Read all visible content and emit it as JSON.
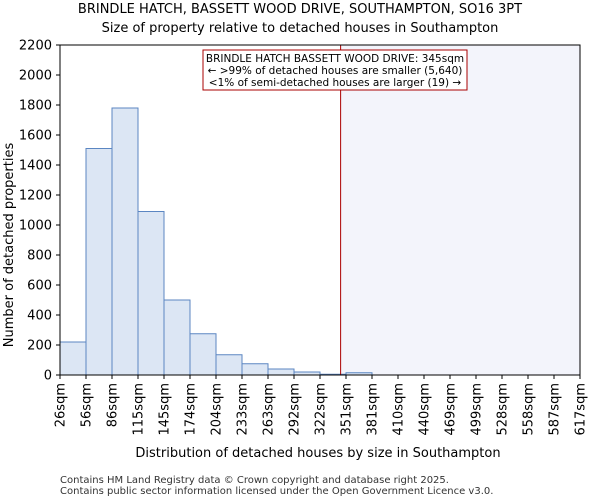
{
  "chart_data": {
    "type": "bar",
    "title": "BRINDLE HATCH, BASSETT WOOD DRIVE, SOUTHAMPTON, SO16 3PT",
    "subtitle": "Size of property relative to detached houses in Southampton",
    "xlabel": "Distribution of detached houses by size in Southampton",
    "ylabel": "Number of detached properties",
    "ylim": [
      0,
      2200
    ],
    "yticks": [
      0,
      200,
      400,
      600,
      800,
      1000,
      1200,
      1400,
      1600,
      1800,
      2000,
      2200
    ],
    "xlim": [
      26,
      617
    ],
    "bin_edges": [
      26,
      56,
      86,
      115,
      145,
      174,
      204,
      233,
      263,
      292,
      322,
      351,
      381,
      410,
      440,
      469,
      499,
      528,
      558,
      587,
      617
    ],
    "x_tick_labels": [
      "26sqm",
      "56sqm",
      "86sqm",
      "115sqm",
      "145sqm",
      "174sqm",
      "204sqm",
      "233sqm",
      "263sqm",
      "292sqm",
      "322sqm",
      "351sqm",
      "381sqm",
      "410sqm",
      "440sqm",
      "469sqm",
      "499sqm",
      "528sqm",
      "558sqm",
      "587sqm",
      "617sqm"
    ],
    "values": [
      220,
      1510,
      1780,
      1090,
      500,
      275,
      135,
      75,
      40,
      20,
      5,
      15,
      0,
      0,
      0,
      0,
      0,
      0,
      0,
      0
    ],
    "property_marker": {
      "value": 345,
      "color": "#aa0000"
    },
    "highlight_region_start": 345,
    "annotation": {
      "line1": "BRINDLE HATCH BASSETT WOOD DRIVE: 345sqm",
      "line2": "← >99% of detached houses are smaller (5,640)",
      "line3": "<1% of semi-detached houses are larger (19) →"
    },
    "colors": {
      "bar_fill": "#dce6f4",
      "bar_edge": "#5b86c2",
      "highlight": "#f3f4fb",
      "annotation_border": "#aa0000"
    }
  },
  "footer": {
    "line1": "Contains HM Land Registry data © Crown copyright and database right 2025.",
    "line2": "Contains public sector information licensed under the Open Government Licence v3.0."
  }
}
